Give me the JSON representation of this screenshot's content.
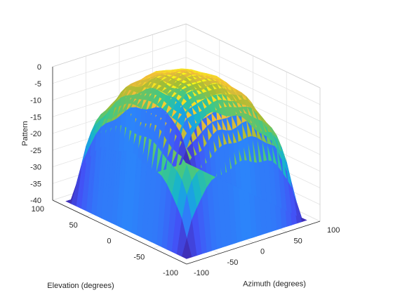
{
  "chart_data": {
    "type": "surface",
    "title": "",
    "xlabel": "Azimuth (degrees)",
    "ylabel": "Elevation (degrees)",
    "zlabel": "Pattern",
    "x_range": [
      -100,
      100
    ],
    "y_range": [
      -100,
      100
    ],
    "z_range": [
      -40,
      0
    ],
    "x_ticks": [
      "-100",
      "-50",
      "0",
      "50",
      "100"
    ],
    "y_ticks": [
      "-100",
      "-50",
      "0",
      "50",
      "100"
    ],
    "z_ticks": [
      "-40",
      "-35",
      "-30",
      "-25",
      "-20",
      "-15",
      "-10",
      "-5",
      "0"
    ],
    "x_values": [
      -90,
      -75,
      -60,
      -45,
      -30,
      -15,
      0,
      15,
      30,
      45,
      60,
      75,
      90
    ],
    "y_values": [
      -90,
      -75,
      -60,
      -45,
      -30,
      -15,
      0,
      15,
      30,
      45,
      60,
      75,
      90
    ],
    "peak_value": 0,
    "min_value": -40,
    "grid": true,
    "colormap": [
      "#3e26a8",
      "#4352f6",
      "#2c84fa",
      "#13b1d6",
      "#3dc88a",
      "#a3bd35",
      "#f0ba3b",
      "#f9fb15"
    ]
  }
}
